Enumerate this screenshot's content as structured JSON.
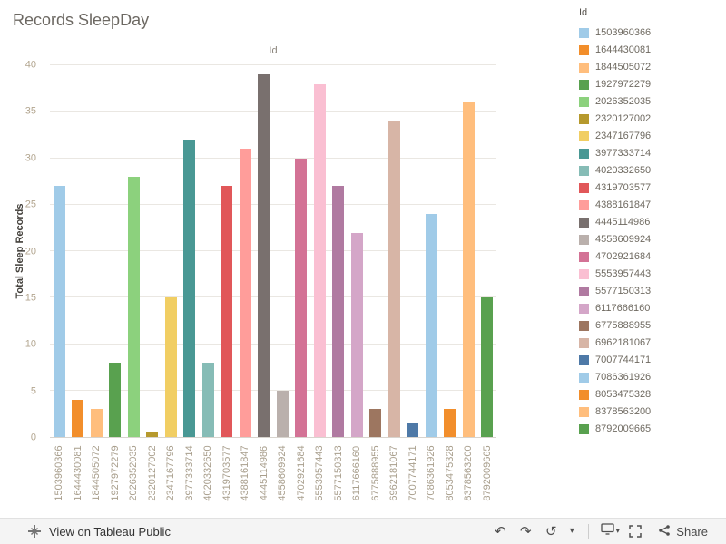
{
  "title": "Records SleepDay",
  "chart_data": {
    "type": "bar",
    "title": "Id",
    "xlabel": "",
    "ylabel": "Total Sleep Records",
    "legend_title": "Id",
    "legend_position": "right",
    "grid": true,
    "ylim": [
      0,
      40
    ],
    "yticks": [
      0,
      5,
      10,
      15,
      20,
      25,
      30,
      35,
      40
    ],
    "categories": [
      "1503960366",
      "1644430081",
      "1844505072",
      "1927972279",
      "2026352035",
      "2320127002",
      "2347167796",
      "3977333714",
      "4020332650",
      "4319703577",
      "4388161847",
      "4445114986",
      "4558609924",
      "4702921684",
      "5553957443",
      "5577150313",
      "6117666160",
      "6775888955",
      "6962181067",
      "7007744171",
      "7086361926",
      "8053475328",
      "8378563200",
      "8792009665"
    ],
    "values": [
      27,
      4,
      3,
      8,
      28,
      0.5,
      15,
      32,
      8,
      27,
      31,
      39,
      5,
      30,
      38,
      27,
      22,
      3,
      34,
      1.5,
      24,
      3,
      36,
      15
    ],
    "colors": [
      "#A0CBE8",
      "#F28E2B",
      "#FFBE7D",
      "#59A14F",
      "#8CD17D",
      "#B6992D",
      "#F1CE63",
      "#499894",
      "#86BCB6",
      "#E15759",
      "#FF9D9A",
      "#79706E",
      "#BAB0AC",
      "#D37295",
      "#FABFD2",
      "#B07AA1",
      "#D4A6C8",
      "#9D7660",
      "#D7B5A6",
      "#4E79A7",
      "#A0CBE8",
      "#F28E2B",
      "#FFBE7D",
      "#59A14F"
    ]
  },
  "toolbar": {
    "view_link_label": "View on Tableau Public",
    "share_label": "Share",
    "icons": {
      "undo": "↶",
      "redo": "↷",
      "replay": "↺",
      "caret": "▾"
    }
  }
}
